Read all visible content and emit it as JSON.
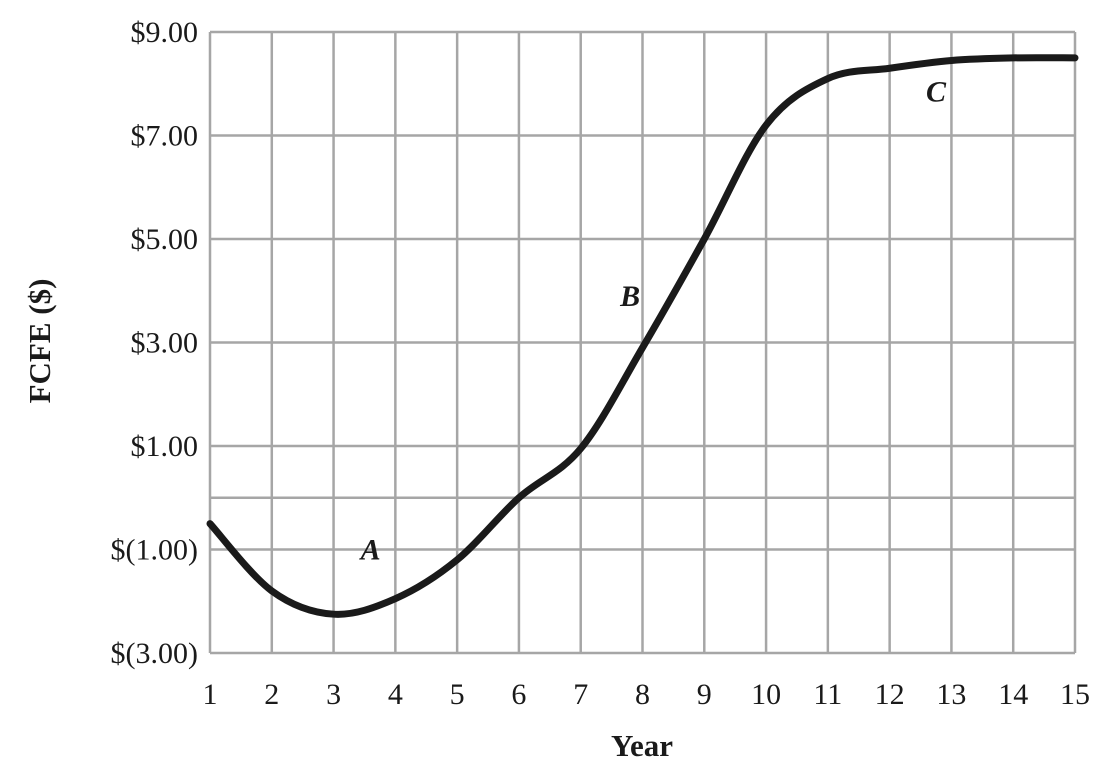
{
  "chart_data": {
    "type": "line",
    "title": "",
    "xlabel": "Year",
    "ylabel": "FCFE ($)",
    "x": [
      1,
      2,
      3,
      4,
      5,
      6,
      7,
      8,
      9,
      10,
      11,
      12,
      13,
      14,
      15
    ],
    "xlim": [
      1,
      15
    ],
    "ylim": [
      -3,
      9
    ],
    "grid": true,
    "legend": "none",
    "x_ticks": [
      "1",
      "2",
      "3",
      "4",
      "5",
      "6",
      "7",
      "8",
      "9",
      "10",
      "11",
      "12",
      "13",
      "14",
      "15"
    ],
    "y_ticks": [
      {
        "value": 9,
        "label": "$9.00"
      },
      {
        "value": 7,
        "label": "$7.00"
      },
      {
        "value": 5,
        "label": "$5.00"
      },
      {
        "value": 3,
        "label": "$3.00"
      },
      {
        "value": 1,
        "label": "$1.00"
      },
      {
        "value": -1,
        "label": "$(1.00)"
      },
      {
        "value": -3,
        "label": "$(3.00)"
      }
    ],
    "series": [
      {
        "values": [
          -0.5,
          -1.8,
          -2.25,
          -1.95,
          -1.2,
          0.0,
          0.95,
          2.9,
          5.0,
          7.2,
          8.1,
          8.3,
          8.45,
          8.5,
          8.5
        ]
      }
    ],
    "annotations": [
      {
        "text": "A",
        "x": 3.6,
        "y": -1.0
      },
      {
        "text": "B",
        "x": 7.8,
        "y": 3.9
      },
      {
        "text": "C",
        "x": 12.75,
        "y": 7.85
      }
    ],
    "colors": {
      "line": "#1a1a1a",
      "grid": "#a6a6a6",
      "text": "#1a1a1a"
    }
  }
}
